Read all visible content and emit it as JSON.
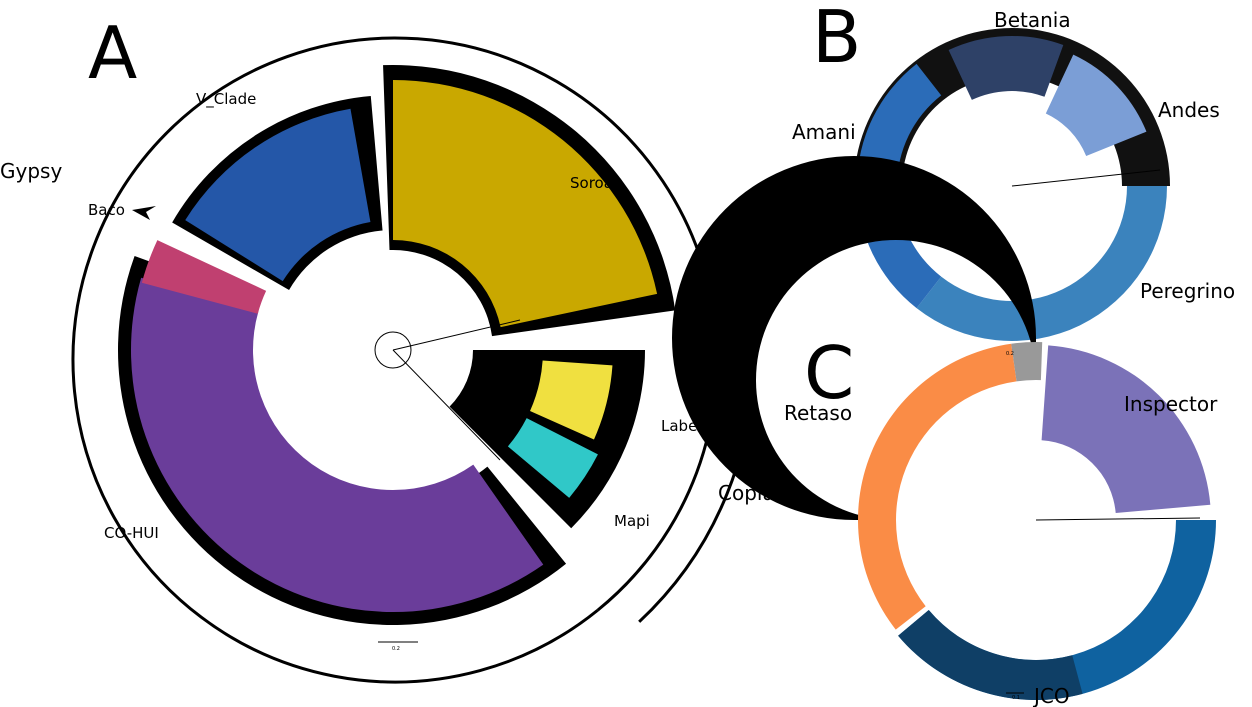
{
  "panels": [
    {
      "letter": "A",
      "groups": [
        "Gypsy",
        "Copia"
      ],
      "clades": [
        "V_Clade",
        "Soroa",
        "Baco",
        "CO-HUI",
        "Labe",
        "Mapi"
      ],
      "scale": "0.2"
    },
    {
      "letter": "B",
      "clades": [
        "Betania",
        "Andes",
        "Amani",
        "Peregrino"
      ],
      "scale": "0.2"
    },
    {
      "letter": "C",
      "clades": [
        "Retaso",
        "Inspector",
        "JCO"
      ],
      "scale": "0.1"
    }
  ]
}
